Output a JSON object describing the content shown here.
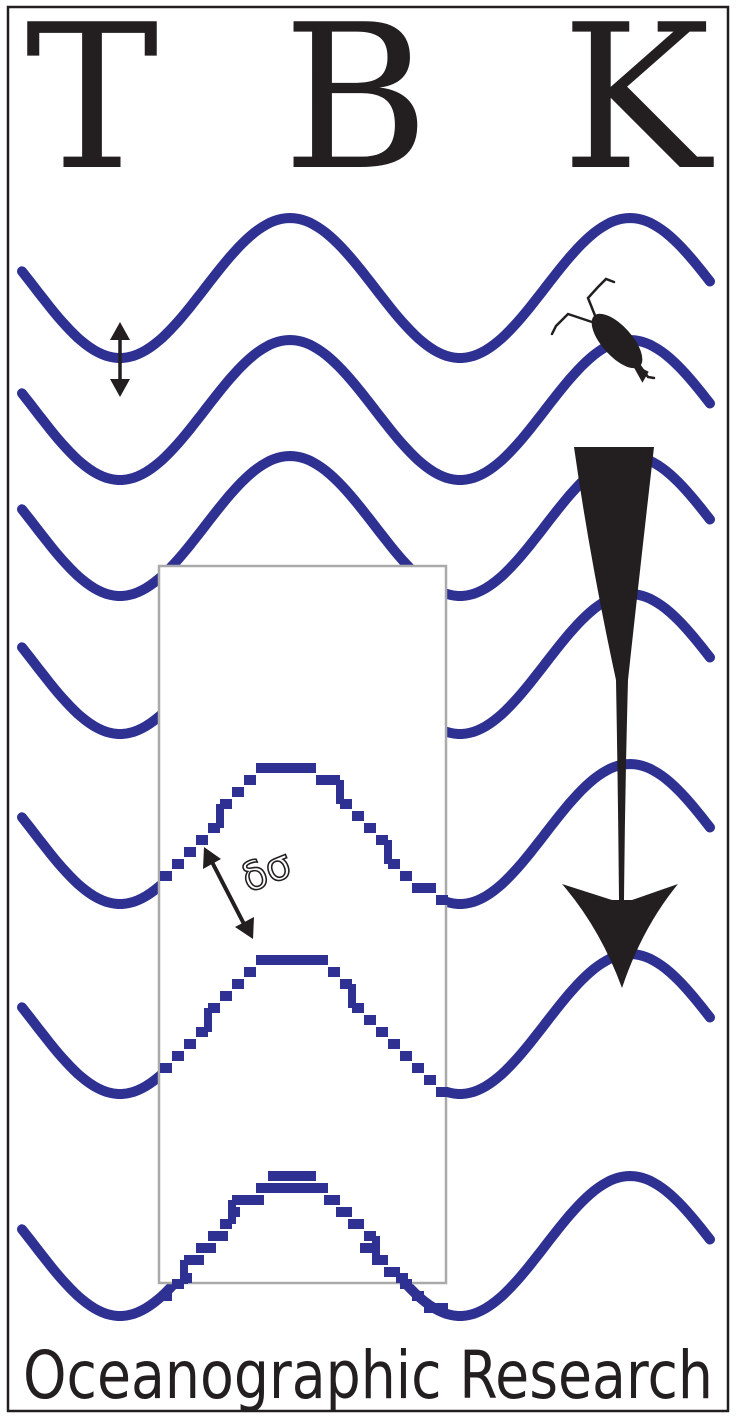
{
  "logo": {
    "letters": [
      "T",
      "B",
      "K"
    ],
    "tagline": "Oceanographic Research",
    "inset_label": "δσ"
  },
  "colors": {
    "wave": "#2e3192",
    "ink": "#231f20",
    "frame": "#231f20",
    "inset_border": "#aaaaaa",
    "background": "#ffffff"
  },
  "icons": {
    "vertical_arrow": "double-headed-vertical-arrow-icon",
    "copepod": "copepod-icon",
    "flux_arrow": "downward-tapered-arrow-icon",
    "diagonal_arrow": "double-headed-diagonal-arrow-icon"
  }
}
